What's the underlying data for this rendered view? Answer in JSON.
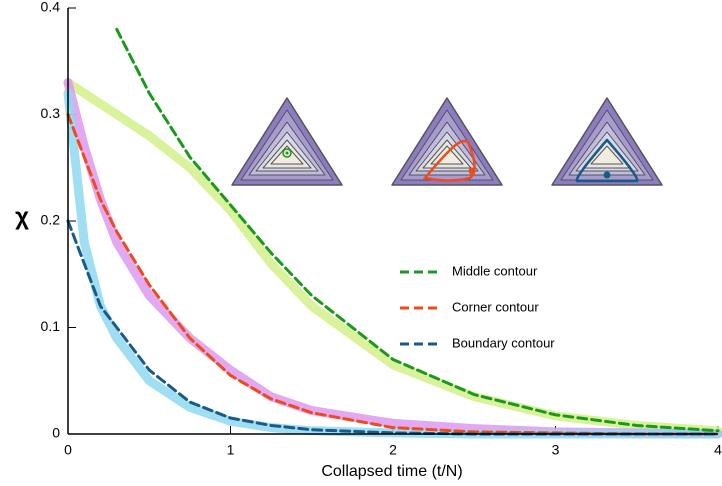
{
  "chart_data": {
    "type": "line",
    "x_label": "Collapsed time (t/N)",
    "y_label": "χ",
    "x": [
      0,
      0.1,
      0.2,
      0.3,
      0.5,
      0.75,
      1,
      1.25,
      1.5,
      2,
      2.5,
      3,
      3.5,
      4
    ],
    "series": [
      {
        "color": "#d4f08a",
        "style": "band",
        "values": [
          0.33,
          0.32,
          0.31,
          0.3,
          0.28,
          0.25,
          0.21,
          0.16,
          0.12,
          0.065,
          0.035,
          0.017,
          0.008,
          0.003
        ]
      },
      {
        "color": "#dd99f0",
        "style": "band",
        "values": [
          0.33,
          0.27,
          0.22,
          0.18,
          0.13,
          0.09,
          0.06,
          0.035,
          0.022,
          0.01,
          0.005,
          0.002,
          0.001,
          0
        ]
      },
      {
        "color": "#8fd8f0",
        "style": "band",
        "values": [
          0.32,
          0.18,
          0.12,
          0.09,
          0.05,
          0.025,
          0.012,
          0.006,
          0.003,
          0.001,
          0,
          0,
          0,
          0
        ]
      },
      {
        "name": "Middle contour",
        "color": "#1a9a1a",
        "style": "dashed",
        "values": [
          null,
          null,
          null,
          0.38,
          0.32,
          0.26,
          0.215,
          0.17,
          0.13,
          0.07,
          0.037,
          0.018,
          0.008,
          0.003
        ]
      },
      {
        "name": "Corner contour",
        "color": "#f04a1a",
        "style": "dashed",
        "values": [
          0.3,
          0.26,
          0.22,
          0.19,
          0.14,
          0.09,
          0.055,
          0.033,
          0.02,
          0.006,
          0.002,
          0.001,
          0,
          0
        ]
      },
      {
        "name": "Boundary contour",
        "color": "#1a5a8a",
        "style": "dashed",
        "values": [
          0.2,
          0.16,
          0.12,
          0.1,
          0.06,
          0.03,
          0.015,
          0.008,
          0.004,
          0.001,
          0,
          0,
          0,
          0
        ]
      }
    ],
    "xlim": [
      0,
      4
    ],
    "xticks": [
      0,
      1,
      2,
      3,
      4
    ],
    "ylim": [
      0,
      0.4
    ],
    "yticks": [
      0,
      0.1,
      0.2,
      0.3,
      0.4
    ]
  }
}
